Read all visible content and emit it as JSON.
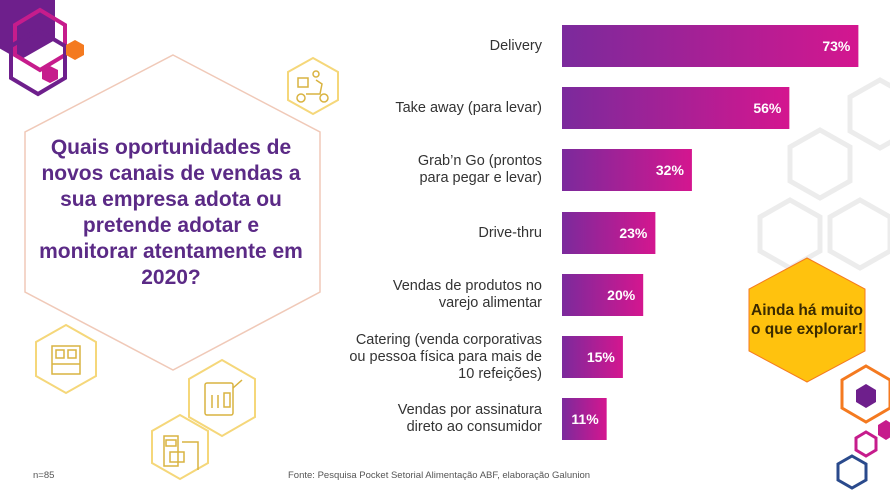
{
  "question": "Quais oportunidades de novos canais de vendas a sua empresa adota ou pretende adotar e monitorar atentamente em 2020?",
  "callout": "Ainda há muito o que explorar!",
  "sample": "n=85",
  "source": "Fonte: Pesquisa Pocket Setorial Alimentação ABF, elaboração Galunion",
  "colors": {
    "bar_start": "#7b2a9c",
    "bar_end": "#d4168f",
    "accent_orange": "#f47a20",
    "accent_purple": "#6e1f8c",
    "accent_pink": "#c61c8c",
    "callout": "#ffc20e"
  },
  "chart_data": {
    "type": "bar",
    "orientation": "horizontal",
    "categories": [
      "Delivery",
      "Take away (para levar)",
      "Grab’n Go (prontos\npara pegar e levar)",
      "Drive-thru",
      "Vendas de produtos no\nvarejo alimentar",
      "Catering (venda corporativas\nou pessoa física para mais de\n10 refeições)",
      "Vendas por assinatura\ndireto ao consumidor"
    ],
    "values": [
      73,
      56,
      32,
      23,
      20,
      15,
      11
    ],
    "value_labels": [
      "73%",
      "56%",
      "32%",
      "23%",
      "20%",
      "15%",
      "11%"
    ],
    "unit": "%",
    "xlim": [
      0,
      100
    ],
    "title": "",
    "xlabel": "",
    "ylabel": ""
  }
}
